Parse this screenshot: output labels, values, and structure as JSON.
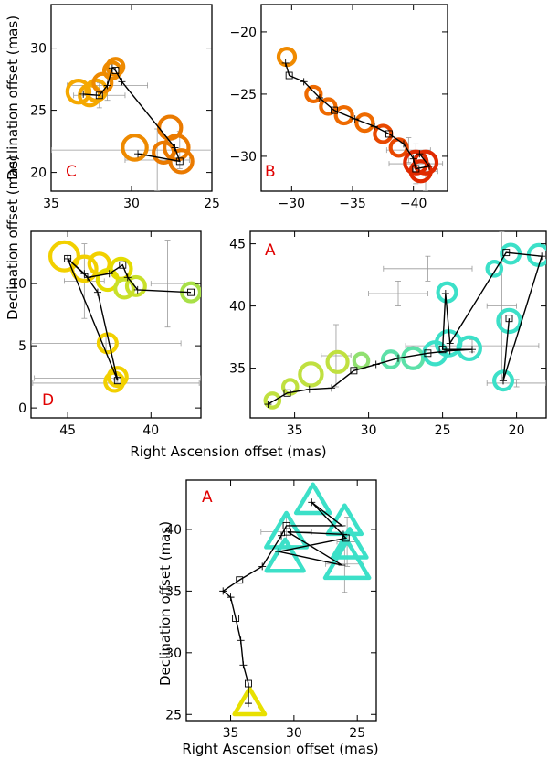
{
  "figure": {
    "ylabel": "Declination offset (mas)",
    "xlabel": "Right Ascension offset (mas)"
  },
  "chart_data": [
    {
      "id": "C",
      "type": "scatter",
      "panel_label": "C",
      "xlim": [
        35,
        25
      ],
      "ylim": [
        18.5,
        33.5
      ],
      "xticks": [
        35,
        30,
        25
      ],
      "yticks": [
        20,
        25,
        30
      ],
      "xlabel": "",
      "ylabel": "Declination offset (mas)",
      "colors": [
        "#f5a800",
        "#ee8a00",
        "#ea7a00"
      ],
      "points": [
        {
          "x": 32.6,
          "y": 26.2,
          "s": 1.0,
          "c": 0
        },
        {
          "x": 33.3,
          "y": 26.5,
          "s": 1.1,
          "c": 0
        },
        {
          "x": 32.2,
          "y": 26.6,
          "s": 1.0,
          "c": 0
        },
        {
          "x": 31.8,
          "y": 27.2,
          "s": 0.9,
          "c": 1
        },
        {
          "x": 31.2,
          "y": 28.2,
          "s": 0.8,
          "c": 1
        },
        {
          "x": 31.0,
          "y": 28.5,
          "s": 0.8,
          "c": 1
        },
        {
          "x": 29.8,
          "y": 22.0,
          "s": 1.2,
          "c": 1
        },
        {
          "x": 28.0,
          "y": 21.6,
          "s": 1.0,
          "c": 2
        },
        {
          "x": 27.6,
          "y": 23.6,
          "s": 1.1,
          "c": 2
        },
        {
          "x": 27.2,
          "y": 22.0,
          "s": 1.2,
          "c": 2
        },
        {
          "x": 26.9,
          "y": 20.9,
          "s": 1.1,
          "c": 2
        }
      ],
      "track": [
        [
          33.0,
          26.3
        ],
        [
          32.0,
          26.2
        ],
        [
          31.5,
          27.0
        ],
        [
          31.2,
          28.4
        ],
        [
          31.0,
          28.2
        ],
        [
          30.6,
          27.3
        ],
        [
          27.3,
          22.0
        ],
        [
          27.0,
          20.9
        ],
        [
          29.6,
          21.5
        ]
      ],
      "errorbars": [
        {
          "x": 31.5,
          "y": 27.0,
          "xerr": 2.5,
          "yerr": 1.2
        },
        {
          "x": 32.0,
          "y": 26.2,
          "xerr": 1.6,
          "yerr": 1.0
        },
        {
          "x": 27.0,
          "y": 21.8,
          "xerr": 8.0,
          "yerr": 1.5
        },
        {
          "x": 28.4,
          "y": 21.0,
          "xerr": 2.0,
          "yerr": 2.5
        }
      ]
    },
    {
      "id": "B",
      "type": "scatter",
      "panel_label": "B",
      "xlim": [
        -27.5,
        -42.8
      ],
      "ylim": [
        -32.8,
        -17.8
      ],
      "xticks": [
        -30,
        -35,
        -40
      ],
      "yticks": [
        -20,
        -25,
        -30
      ],
      "xlabel": "",
      "ylabel": "",
      "colors": [
        "#f08a00",
        "#ee6a00",
        "#e84800",
        "#e02a00"
      ],
      "points": [
        {
          "x": -29.6,
          "y": -22.0,
          "s": 0.9,
          "c": 0
        },
        {
          "x": -31.8,
          "y": -25.0,
          "s": 0.8,
          "c": 1
        },
        {
          "x": -33.0,
          "y": -26.0,
          "s": 0.8,
          "c": 1
        },
        {
          "x": -34.3,
          "y": -26.7,
          "s": 0.9,
          "c": 1
        },
        {
          "x": -36.0,
          "y": -27.3,
          "s": 0.9,
          "c": 1
        },
        {
          "x": -37.5,
          "y": -28.2,
          "s": 0.9,
          "c": 2
        },
        {
          "x": -38.8,
          "y": -29.3,
          "s": 0.9,
          "c": 2
        },
        {
          "x": -40.2,
          "y": -30.5,
          "s": 1.2,
          "c": 3
        },
        {
          "x": -41.0,
          "y": -30.5,
          "s": 1.2,
          "c": 3
        },
        {
          "x": -40.6,
          "y": -31.2,
          "s": 1.1,
          "c": 3
        }
      ],
      "track": [
        [
          -29.5,
          -22.5
        ],
        [
          -29.8,
          -23.5
        ],
        [
          -31.0,
          -24.0
        ],
        [
          -32.3,
          -25.3
        ],
        [
          -33.5,
          -26.3
        ],
        [
          -35.2,
          -27.0
        ],
        [
          -36.8,
          -27.6
        ],
        [
          -38.0,
          -28.2
        ],
        [
          -39.2,
          -29.0
        ],
        [
          -40.0,
          -30.2
        ],
        [
          -40.2,
          -31.0
        ],
        [
          -41.3,
          -30.8
        ],
        [
          -40.5,
          -29.8
        ]
      ],
      "errorbars": [
        {
          "x": -39.6,
          "y": -29.5,
          "xerr": 1.8,
          "yerr": 1.0
        },
        {
          "x": -40.2,
          "y": -30.6,
          "xerr": 2.2,
          "yerr": 1.6
        },
        {
          "x": -41.0,
          "y": -31.2,
          "xerr": 1.0,
          "yerr": 1.6
        }
      ]
    },
    {
      "id": "D",
      "type": "scatter",
      "panel_label": "D",
      "xlim": [
        47.2,
        37.0
      ],
      "ylim": [
        -0.8,
        14.2
      ],
      "xticks": [
        45,
        40
      ],
      "yticks": [
        0,
        5,
        10
      ],
      "xlabel": "Right Ascension offset (mas)",
      "ylabel": "Declination offset (mas)",
      "colors": [
        "#f2d000",
        "#e4dc00",
        "#c8e02a",
        "#a8e048"
      ],
      "points": [
        {
          "x": 45.2,
          "y": 12.2,
          "s": 1.4,
          "c": 0
        },
        {
          "x": 44.0,
          "y": 11.2,
          "s": 1.2,
          "c": 0
        },
        {
          "x": 43.1,
          "y": 11.6,
          "s": 1.0,
          "c": 0
        },
        {
          "x": 42.6,
          "y": 10.3,
          "s": 1.0,
          "c": 1
        },
        {
          "x": 41.8,
          "y": 11.2,
          "s": 1.0,
          "c": 1
        },
        {
          "x": 41.6,
          "y": 9.6,
          "s": 0.9,
          "c": 2
        },
        {
          "x": 40.9,
          "y": 9.8,
          "s": 0.9,
          "c": 2
        },
        {
          "x": 37.6,
          "y": 9.3,
          "s": 0.9,
          "c": 3
        },
        {
          "x": 42.6,
          "y": 5.2,
          "s": 0.9,
          "c": 0
        },
        {
          "x": 42.0,
          "y": 2.5,
          "s": 0.9,
          "c": 0
        },
        {
          "x": 42.2,
          "y": 2.1,
          "s": 0.9,
          "c": 0
        }
      ],
      "track": [
        [
          45.0,
          12.0
        ],
        [
          42.0,
          2.2
        ],
        [
          43.2,
          9.3
        ],
        [
          44.0,
          10.8
        ],
        [
          45.0,
          12.0
        ],
        [
          43.8,
          10.5
        ],
        [
          42.5,
          10.8
        ],
        [
          41.7,
          11.5
        ],
        [
          41.4,
          10.5
        ],
        [
          40.8,
          9.5
        ],
        [
          37.6,
          9.3
        ]
      ],
      "errorbars": [
        {
          "x": 42.7,
          "y": 5.2,
          "xerr": 4.5,
          "yerr": 0.6
        },
        {
          "x": 42.0,
          "y": 2.4,
          "xerr": 5.0,
          "yerr": 0.4
        },
        {
          "x": 42.1,
          "y": 2.0,
          "xerr": 5.0,
          "yerr": 0.3
        },
        {
          "x": 44.0,
          "y": 10.2,
          "xerr": 1.2,
          "yerr": 3.0
        },
        {
          "x": 39.0,
          "y": 10.0,
          "xerr": 1.0,
          "yerr": 3.5
        }
      ]
    },
    {
      "id": "A1",
      "type": "scatter",
      "panel_label": "A",
      "xlim": [
        38.0,
        18.0
      ],
      "ylim": [
        31.0,
        46.0
      ],
      "xticks": [
        35,
        30,
        25,
        20
      ],
      "yticks": [
        35,
        40,
        45
      ],
      "xlabel": "Right Ascension offset (mas)",
      "ylabel": "",
      "colors": [
        "#c0e040",
        "#90e070",
        "#5ce0a8",
        "#3ce0c8"
      ],
      "points": [
        {
          "x": 36.5,
          "y": 32.4,
          "s": 0.7,
          "c": 0
        },
        {
          "x": 35.3,
          "y": 33.5,
          "s": 0.7,
          "c": 0
        },
        {
          "x": 33.9,
          "y": 34.5,
          "s": 1.1,
          "c": 0
        },
        {
          "x": 32.1,
          "y": 35.5,
          "s": 1.0,
          "c": 0
        },
        {
          "x": 30.5,
          "y": 35.6,
          "s": 0.7,
          "c": 1
        },
        {
          "x": 28.5,
          "y": 35.7,
          "s": 0.8,
          "c": 2
        },
        {
          "x": 27.0,
          "y": 35.8,
          "s": 1.0,
          "c": 2
        },
        {
          "x": 25.5,
          "y": 36.2,
          "s": 1.1,
          "c": 3
        },
        {
          "x": 24.6,
          "y": 37.0,
          "s": 1.2,
          "c": 3
        },
        {
          "x": 23.2,
          "y": 36.6,
          "s": 1.1,
          "c": 3
        },
        {
          "x": 24.7,
          "y": 41.1,
          "s": 0.9,
          "c": 3
        },
        {
          "x": 20.4,
          "y": 44.2,
          "s": 0.9,
          "c": 3
        },
        {
          "x": 21.5,
          "y": 43.0,
          "s": 0.7,
          "c": 3
        },
        {
          "x": 18.5,
          "y": 44.1,
          "s": 1.0,
          "c": 3
        },
        {
          "x": 20.5,
          "y": 38.8,
          "s": 1.1,
          "c": 3
        },
        {
          "x": 20.9,
          "y": 34.0,
          "s": 0.9,
          "c": 3
        }
      ],
      "track": [
        [
          36.8,
          32.1
        ],
        [
          35.5,
          33.0
        ],
        [
          34.0,
          33.3
        ],
        [
          32.5,
          33.4
        ],
        [
          31.0,
          34.8
        ],
        [
          29.5,
          35.3
        ],
        [
          28.0,
          35.8
        ],
        [
          26.0,
          36.2
        ],
        [
          24.5,
          36.4
        ],
        [
          23.0,
          36.5
        ],
        [
          25.0,
          36.5
        ],
        [
          24.8,
          41.0
        ],
        [
          24.5,
          37.0
        ],
        [
          20.7,
          44.3
        ],
        [
          18.3,
          44.0
        ],
        [
          20.9,
          34.0
        ],
        [
          20.5,
          39.0
        ],
        [
          20.9,
          34.0
        ]
      ],
      "errorbars": [
        {
          "x": 32.2,
          "y": 36.0,
          "xerr": 1.0,
          "yerr": 2.5
        },
        {
          "x": 28.0,
          "y": 41.0,
          "xerr": 2.0,
          "yerr": 1.0
        },
        {
          "x": 26.0,
          "y": 43.0,
          "xerr": 3.0,
          "yerr": 1.0
        },
        {
          "x": 23.0,
          "y": 36.8,
          "xerr": 4.5,
          "yerr": 0.5
        },
        {
          "x": 20.0,
          "y": 33.8,
          "xerr": 2.0,
          "yerr": 0.3
        },
        {
          "x": 21.0,
          "y": 40.0,
          "xerr": 1.0,
          "yerr": 6.0
        }
      ]
    },
    {
      "id": "A2",
      "type": "scatter",
      "panel_label": "A",
      "xlim": [
        38.5,
        23.5
      ],
      "ylim": [
        24.5,
        44.0
      ],
      "xticks": [
        35,
        30,
        25
      ],
      "yticks": [
        25,
        30,
        35,
        40
      ],
      "xlabel": "Right Ascension offset (mas)",
      "ylabel": "Declination offset (mas)",
      "marker": "triangle",
      "colors": [
        "#e8e000",
        "#3ce0c8"
      ],
      "points": [
        {
          "x": 33.5,
          "y": 25.8,
          "s": 0.9,
          "c": 0
        },
        {
          "x": 28.5,
          "y": 42.2,
          "s": 1.0,
          "c": 1
        },
        {
          "x": 26.0,
          "y": 40.5,
          "s": 1.0,
          "c": 1
        },
        {
          "x": 25.6,
          "y": 38.6,
          "s": 1.0,
          "c": 1
        },
        {
          "x": 30.6,
          "y": 39.6,
          "s": 1.2,
          "c": 1
        },
        {
          "x": 30.7,
          "y": 37.6,
          "s": 1.1,
          "c": 1
        },
        {
          "x": 25.8,
          "y": 37.2,
          "s": 1.3,
          "c": 1
        }
      ],
      "track": [
        [
          33.6,
          25.9
        ],
        [
          33.6,
          27.5
        ],
        [
          34.0,
          29.0
        ],
        [
          34.2,
          31.0
        ],
        [
          34.6,
          32.8
        ],
        [
          35.0,
          34.5
        ],
        [
          35.6,
          35.0
        ],
        [
          34.3,
          35.9
        ],
        [
          32.5,
          37.0
        ],
        [
          31.0,
          39.5
        ],
        [
          30.6,
          40.3
        ],
        [
          26.2,
          40.3
        ],
        [
          28.6,
          42.2
        ],
        [
          25.9,
          39.3
        ],
        [
          31.2,
          38.2
        ],
        [
          26.2,
          37.1
        ],
        [
          30.5,
          39.8
        ],
        [
          26.1,
          39.6
        ]
      ],
      "errorbars": [
        {
          "x": 30.6,
          "y": 39.8,
          "xerr": 2.0,
          "yerr": 1.2
        },
        {
          "x": 25.8,
          "y": 39.0,
          "xerr": 0.8,
          "yerr": 2.0
        },
        {
          "x": 26.0,
          "y": 37.2,
          "xerr": 1.5,
          "yerr": 2.3
        }
      ]
    }
  ]
}
